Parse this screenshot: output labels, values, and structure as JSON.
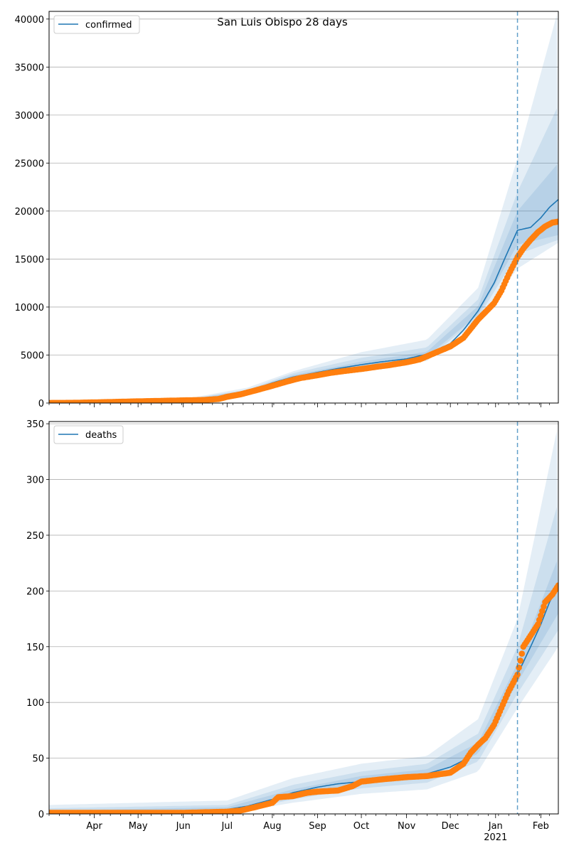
{
  "figure_title": "San Luis Obispo 28 days",
  "colors": {
    "model": "#1f77b4",
    "observed": "#ff7f0e",
    "band": "#1f77b4",
    "grid": "#b0b0b0",
    "forecast_line": "#1f77b4"
  },
  "x_axis": {
    "start": "2020-03-01",
    "end": "2021-02-13",
    "tick_labels": [
      {
        "date": "2020-04-01",
        "label": "Apr"
      },
      {
        "date": "2020-05-01",
        "label": "May"
      },
      {
        "date": "2020-06-01",
        "label": "Jun"
      },
      {
        "date": "2020-07-01",
        "label": "Jul"
      },
      {
        "date": "2020-08-01",
        "label": "Aug"
      },
      {
        "date": "2020-09-01",
        "label": "Sep"
      },
      {
        "date": "2020-10-01",
        "label": "Oct"
      },
      {
        "date": "2020-11-01",
        "label": "Nov"
      },
      {
        "date": "2020-12-01",
        "label": "Dec"
      },
      {
        "date": "2021-01-01",
        "label": "Jan"
      },
      {
        "date": "2021-02-01",
        "label": "Feb"
      }
    ],
    "year_label": "2021",
    "year_label_date": "2021-01-01"
  },
  "forecast_start": "2021-01-16",
  "chart_data": [
    {
      "type": "line",
      "legend": "confirmed",
      "legend_position": "upper-left",
      "grid": "horizontal",
      "ylim": [
        0,
        40800
      ],
      "yticks": [
        0,
        5000,
        10000,
        15000,
        20000,
        25000,
        30000,
        35000,
        40000
      ],
      "model_curve": {
        "x": [
          "2020-03-01",
          "2020-04-01",
          "2020-05-01",
          "2020-06-01",
          "2020-06-20",
          "2020-07-01",
          "2020-07-15",
          "2020-08-01",
          "2020-08-15",
          "2020-09-01",
          "2020-09-15",
          "2020-10-01",
          "2020-10-15",
          "2020-11-01",
          "2020-11-15",
          "2020-12-01",
          "2020-12-10",
          "2020-12-20",
          "2020-12-31",
          "2021-01-08",
          "2021-01-16",
          "2021-01-25",
          "2021-02-01",
          "2021-02-07",
          "2021-02-13"
        ],
        "y": [
          50,
          100,
          180,
          260,
          350,
          650,
          1200,
          2100,
          2700,
          3200,
          3600,
          4000,
          4300,
          4600,
          5100,
          6200,
          7600,
          9600,
          12500,
          15300,
          18000,
          18300,
          19300,
          20400,
          21200
        ]
      },
      "bands": [
        {
          "x": [
            "2020-03-01",
            "2020-06-01",
            "2020-07-15",
            "2020-08-15",
            "2020-10-01",
            "2020-11-15",
            "2020-12-20",
            "2021-01-16",
            "2021-02-13"
          ],
          "lower": [
            0,
            200,
            900,
            2300,
            3400,
            4400,
            8500,
            14000,
            16700
          ],
          "upper": [
            100,
            400,
            1600,
            3300,
            5300,
            6600,
            12000,
            25500,
            41000
          ]
        },
        {
          "x": [
            "2020-03-01",
            "2020-06-01",
            "2020-07-15",
            "2020-08-15",
            "2020-10-01",
            "2020-11-15",
            "2020-12-20",
            "2021-01-16",
            "2021-02-13"
          ],
          "lower": [
            20,
            220,
            1000,
            2400,
            3600,
            4600,
            8900,
            15500,
            17000
          ],
          "upper": [
            80,
            330,
            1400,
            3100,
            4700,
            5800,
            10800,
            22000,
            31000
          ]
        },
        {
          "x": [
            "2020-03-01",
            "2020-06-01",
            "2020-07-15",
            "2020-08-15",
            "2020-10-01",
            "2020-11-15",
            "2020-12-20",
            "2021-01-16",
            "2021-02-13"
          ],
          "lower": [
            35,
            240,
            1080,
            2550,
            3800,
            4850,
            9200,
            16500,
            17500
          ],
          "upper": [
            65,
            290,
            1320,
            2900,
            4300,
            5350,
            10100,
            20000,
            25000
          ]
        }
      ],
      "observed": {
        "x": [
          "2020-03-01",
          "2020-03-15",
          "2020-04-01",
          "2020-04-15",
          "2020-05-01",
          "2020-05-15",
          "2020-06-01",
          "2020-06-15",
          "2020-06-25",
          "2020-07-01",
          "2020-07-10",
          "2020-07-20",
          "2020-08-01",
          "2020-08-10",
          "2020-08-20",
          "2020-09-01",
          "2020-09-10",
          "2020-09-20",
          "2020-10-01",
          "2020-10-10",
          "2020-10-20",
          "2020-11-01",
          "2020-11-10",
          "2020-11-20",
          "2020-12-01",
          "2020-12-10",
          "2020-12-20",
          "2020-12-31",
          "2021-01-05",
          "2021-01-10",
          "2021-01-16",
          "2021-01-20",
          "2021-01-25",
          "2021-01-30",
          "2021-02-04",
          "2021-02-09",
          "2021-02-13"
        ],
        "y": [
          10,
          20,
          70,
          120,
          180,
          220,
          280,
          320,
          420,
          650,
          900,
          1300,
          1800,
          2200,
          2600,
          2900,
          3150,
          3350,
          3550,
          3750,
          3950,
          4250,
          4550,
          5200,
          5900,
          6800,
          8700,
          10400,
          11700,
          13400,
          15200,
          16100,
          17000,
          17800,
          18400,
          18800,
          18900
        ]
      }
    },
    {
      "type": "line",
      "legend": "deaths",
      "legend_position": "upper-left",
      "grid": "horizontal",
      "ylim": [
        0,
        352
      ],
      "yticks": [
        0,
        50,
        100,
        150,
        200,
        250,
        300,
        350
      ],
      "model_curve": {
        "x": [
          "2020-03-01",
          "2020-04-01",
          "2020-05-01",
          "2020-06-01",
          "2020-07-01",
          "2020-07-15",
          "2020-08-01",
          "2020-08-15",
          "2020-09-01",
          "2020-09-15",
          "2020-10-01",
          "2020-10-15",
          "2020-11-01",
          "2020-11-15",
          "2020-12-01",
          "2020-12-10",
          "2020-12-20",
          "2020-12-31",
          "2021-01-08",
          "2021-01-16",
          "2021-01-25",
          "2021-02-01",
          "2021-02-07",
          "2021-02-13"
        ],
        "y": [
          1,
          1,
          2,
          2,
          4,
          7,
          13,
          19,
          24,
          27,
          29,
          31,
          33,
          36,
          42,
          48,
          60,
          80,
          100,
          125,
          150,
          170,
          190,
          205
        ]
      },
      "bands": [
        {
          "x": [
            "2020-03-01",
            "2020-07-01",
            "2020-08-15",
            "2020-10-01",
            "2020-11-15",
            "2020-12-20",
            "2021-01-16",
            "2021-02-13"
          ],
          "lower": [
            0,
            0,
            10,
            18,
            22,
            38,
            95,
            150
          ],
          "upper": [
            8,
            12,
            32,
            45,
            52,
            85,
            175,
            350
          ]
        },
        {
          "x": [
            "2020-03-01",
            "2020-07-01",
            "2020-08-15",
            "2020-10-01",
            "2020-11-15",
            "2020-12-20",
            "2021-01-16",
            "2021-02-13"
          ],
          "lower": [
            0,
            1,
            13,
            23,
            28,
            47,
            108,
            165
          ],
          "upper": [
            5,
            8,
            26,
            38,
            45,
            72,
            150,
            280
          ]
        },
        {
          "x": [
            "2020-03-01",
            "2020-07-01",
            "2020-08-15",
            "2020-10-01",
            "2020-11-15",
            "2020-12-20",
            "2021-01-16",
            "2021-02-13"
          ],
          "lower": [
            0,
            2,
            16,
            27,
            32,
            54,
            118,
            180
          ],
          "upper": [
            3,
            6,
            22,
            34,
            40,
            64,
            135,
            230
          ]
        }
      ],
      "observed": {
        "x": [
          "2020-03-01",
          "2020-04-01",
          "2020-05-01",
          "2020-06-01",
          "2020-07-01",
          "2020-07-10",
          "2020-07-20",
          "2020-08-01",
          "2020-08-05",
          "2020-08-15",
          "2020-08-25",
          "2020-09-01",
          "2020-09-15",
          "2020-09-25",
          "2020-10-01",
          "2020-10-15",
          "2020-11-01",
          "2020-11-15",
          "2020-12-01",
          "2020-12-10",
          "2020-12-15",
          "2020-12-20",
          "2020-12-25",
          "2020-12-31",
          "2021-01-05",
          "2021-01-10",
          "2021-01-16",
          "2021-01-20",
          "2021-01-25",
          "2021-01-30",
          "2021-02-04",
          "2021-02-09",
          "2021-02-13"
        ],
        "y": [
          1,
          1,
          1,
          1,
          2,
          3,
          6,
          10,
          15,
          16,
          19,
          20,
          21,
          25,
          29,
          31,
          33,
          34,
          37,
          45,
          55,
          62,
          68,
          80,
          95,
          110,
          125,
          150,
          160,
          170,
          190,
          197,
          205
        ]
      }
    }
  ]
}
